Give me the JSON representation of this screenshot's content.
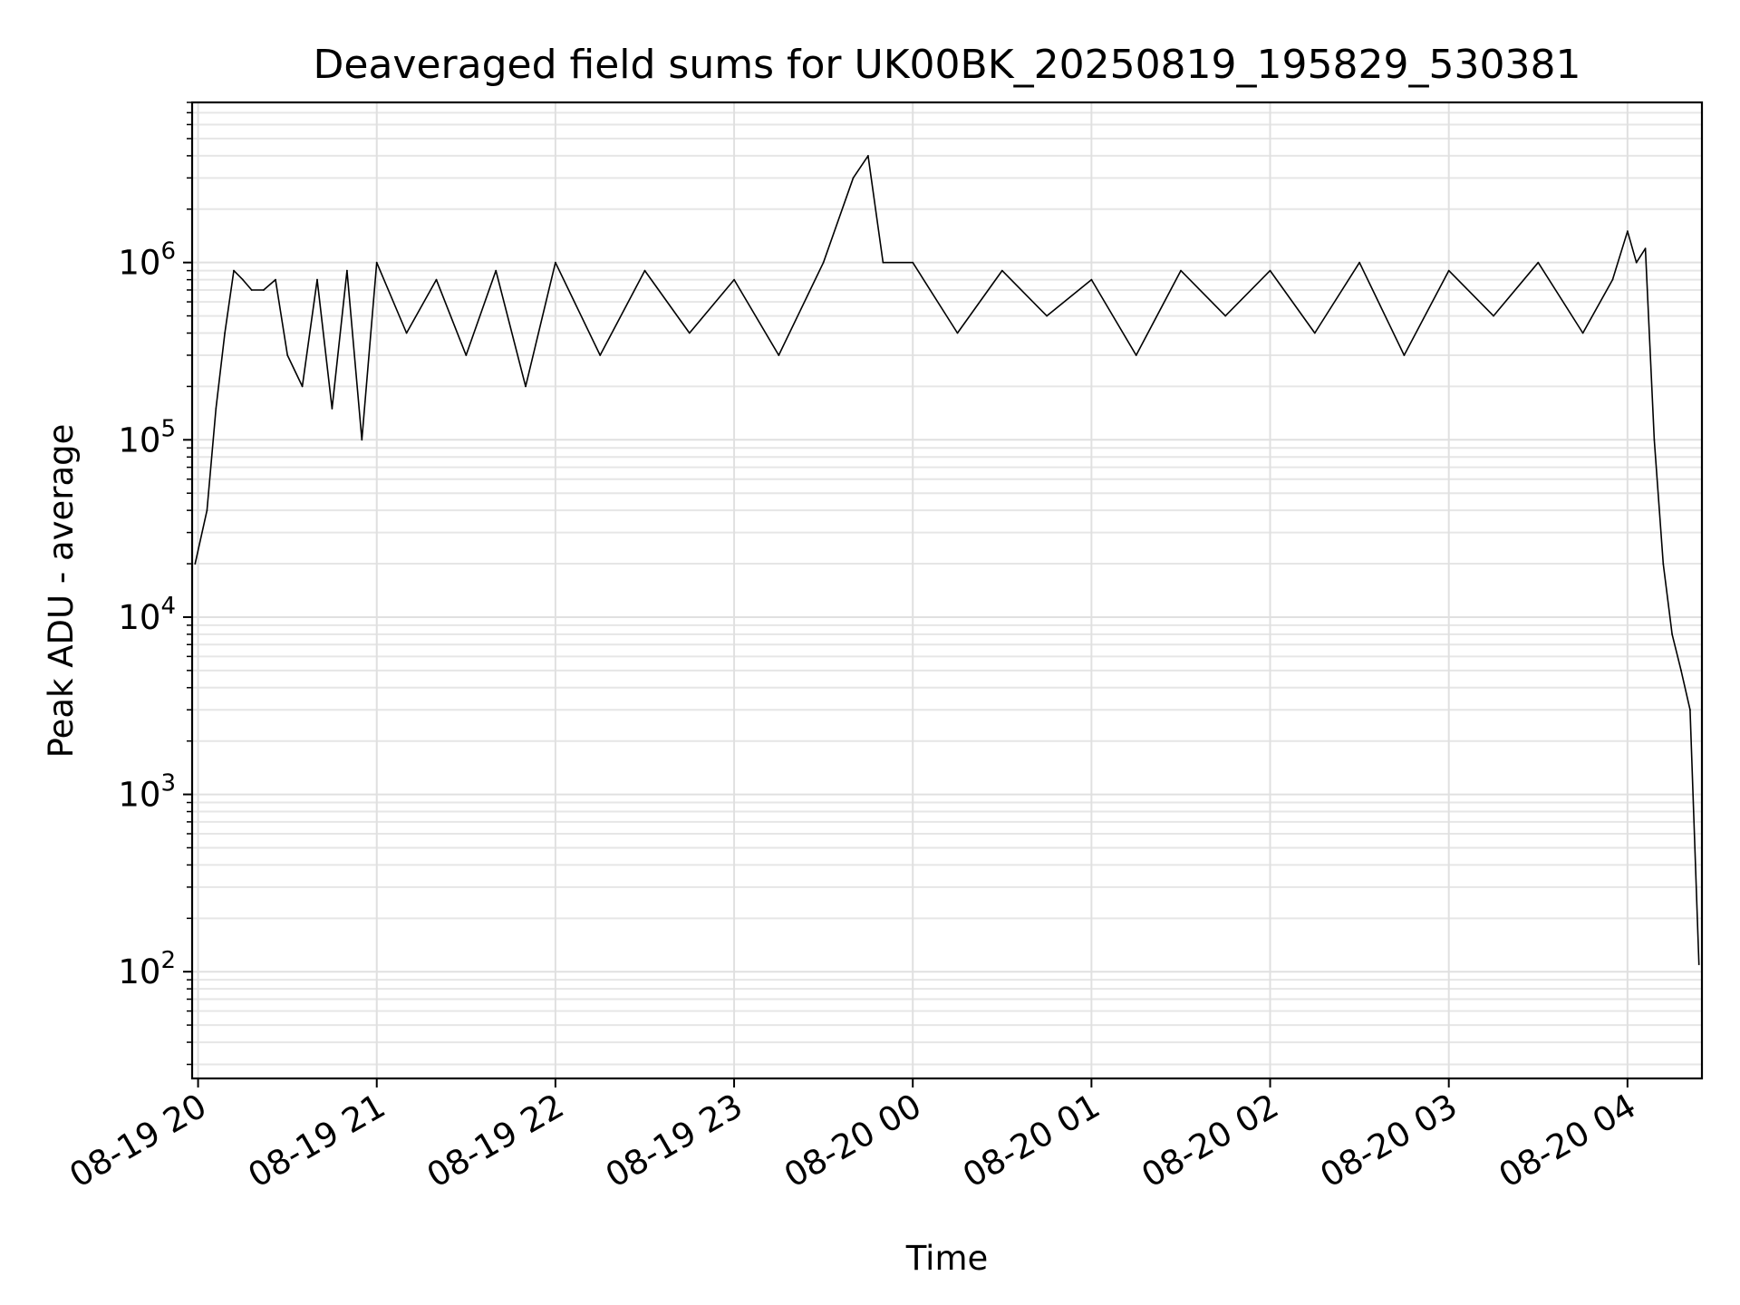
{
  "chart_data": {
    "type": "line",
    "title": "Deaveraged field sums for UK00BK_20250819_195829_530381",
    "xlabel": "Time",
    "ylabel": "Peak ADU - average",
    "yscale": "log",
    "grid": true,
    "ylim": [
      25,
      8000000
    ],
    "xlim": [
      "2025-08-19 19:58",
      "2025-08-20 04:25"
    ],
    "x_ticks": [
      {
        "t": "2025-08-19 20:00",
        "label": "08-19 20"
      },
      {
        "t": "2025-08-19 21:00",
        "label": "08-19 21"
      },
      {
        "t": "2025-08-19 22:00",
        "label": "08-19 22"
      },
      {
        "t": "2025-08-19 23:00",
        "label": "08-19 23"
      },
      {
        "t": "2025-08-20 00:00",
        "label": "08-20 00"
      },
      {
        "t": "2025-08-20 01:00",
        "label": "08-20 01"
      },
      {
        "t": "2025-08-20 02:00",
        "label": "08-20 02"
      },
      {
        "t": "2025-08-20 03:00",
        "label": "08-20 03"
      },
      {
        "t": "2025-08-20 04:00",
        "label": "08-20 04"
      }
    ],
    "y_ticks": [
      {
        "value": 100,
        "base": "10",
        "exp": "2"
      },
      {
        "value": 1000,
        "base": "10",
        "exp": "3"
      },
      {
        "value": 10000,
        "base": "10",
        "exp": "4"
      },
      {
        "value": 100000,
        "base": "10",
        "exp": "5"
      },
      {
        "value": 1000000,
        "base": "10",
        "exp": "6"
      }
    ],
    "series": [
      {
        "color": "#000000",
        "x": [
          "2025-08-19 19:59",
          "2025-08-19 20:03",
          "2025-08-19 20:06",
          "2025-08-19 20:09",
          "2025-08-19 20:12",
          "2025-08-19 20:15",
          "2025-08-19 20:18",
          "2025-08-19 20:22",
          "2025-08-19 20:26",
          "2025-08-19 20:30",
          "2025-08-19 20:35",
          "2025-08-19 20:40",
          "2025-08-19 20:45",
          "2025-08-19 20:50",
          "2025-08-19 20:55",
          "2025-08-19 21:00",
          "2025-08-19 21:10",
          "2025-08-19 21:20",
          "2025-08-19 21:30",
          "2025-08-19 21:40",
          "2025-08-19 21:50",
          "2025-08-19 22:00",
          "2025-08-19 22:15",
          "2025-08-19 22:30",
          "2025-08-19 22:45",
          "2025-08-19 23:00",
          "2025-08-19 23:15",
          "2025-08-19 23:30",
          "2025-08-19 23:40",
          "2025-08-19 23:45",
          "2025-08-19 23:50",
          "2025-08-20 00:00",
          "2025-08-20 00:15",
          "2025-08-20 00:30",
          "2025-08-20 00:45",
          "2025-08-20 01:00",
          "2025-08-20 01:15",
          "2025-08-20 01:30",
          "2025-08-20 01:45",
          "2025-08-20 02:00",
          "2025-08-20 02:15",
          "2025-08-20 02:30",
          "2025-08-20 02:45",
          "2025-08-20 03:00",
          "2025-08-20 03:15",
          "2025-08-20 03:30",
          "2025-08-20 03:45",
          "2025-08-20 03:55",
          "2025-08-20 04:00",
          "2025-08-20 04:03",
          "2025-08-20 04:06",
          "2025-08-20 04:09",
          "2025-08-20 04:12",
          "2025-08-20 04:15",
          "2025-08-20 04:18",
          "2025-08-20 04:21",
          "2025-08-20 04:24"
        ],
        "y": [
          20000,
          40000,
          150000,
          400000,
          900000,
          800000,
          700000,
          700000,
          800000,
          300000,
          200000,
          800000,
          150000,
          900000,
          100000,
          1000000,
          400000,
          800000,
          300000,
          900000,
          200000,
          1000000,
          300000,
          900000,
          400000,
          800000,
          300000,
          1000000,
          3000000,
          4000000,
          1000000,
          1000000,
          400000,
          900000,
          500000,
          800000,
          300000,
          900000,
          500000,
          900000,
          400000,
          1000000,
          300000,
          900000,
          500000,
          1000000,
          400000,
          800000,
          1500000,
          1000000,
          1200000,
          100000,
          20000,
          8000,
          5000,
          3000,
          110
        ]
      }
    ]
  }
}
